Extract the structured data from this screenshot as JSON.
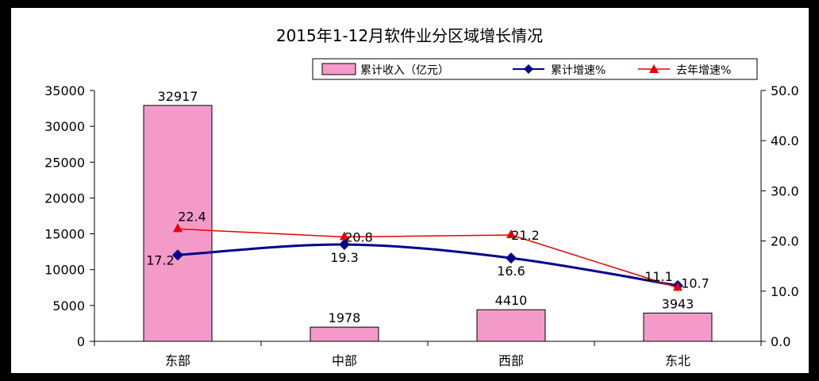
{
  "chart_data": {
    "type": "bar-line-combo",
    "title": "2015年1-12月软件业分区域增长情况",
    "categories": [
      "东部",
      "中部",
      "西部",
      "东北"
    ],
    "bar_series": {
      "name": "累计收入（亿元）",
      "values": [
        32917,
        1978,
        4410,
        3943
      ],
      "color": "#F49AC9"
    },
    "line_series": [
      {
        "name": "累计增速%",
        "values": [
          17.2,
          19.3,
          16.6,
          11.1
        ],
        "color": "#00008B",
        "marker": "diamond"
      },
      {
        "name": "去年增速%",
        "values": [
          22.4,
          20.8,
          21.2,
          10.7
        ],
        "color": "#E60000",
        "marker": "triangle"
      }
    ],
    "y_left": {
      "min": 0,
      "max": 35000,
      "step": 5000,
      "ticks": [
        "0",
        "5000",
        "10000",
        "15000",
        "20000",
        "25000",
        "30000",
        "35000"
      ]
    },
    "y_right": {
      "min": 0,
      "max": 50,
      "step": 10,
      "ticks": [
        "0.0",
        "10.0",
        "20.0",
        "30.0",
        "40.0",
        "50.0"
      ]
    },
    "legend_position": "top-right",
    "grid": false
  }
}
